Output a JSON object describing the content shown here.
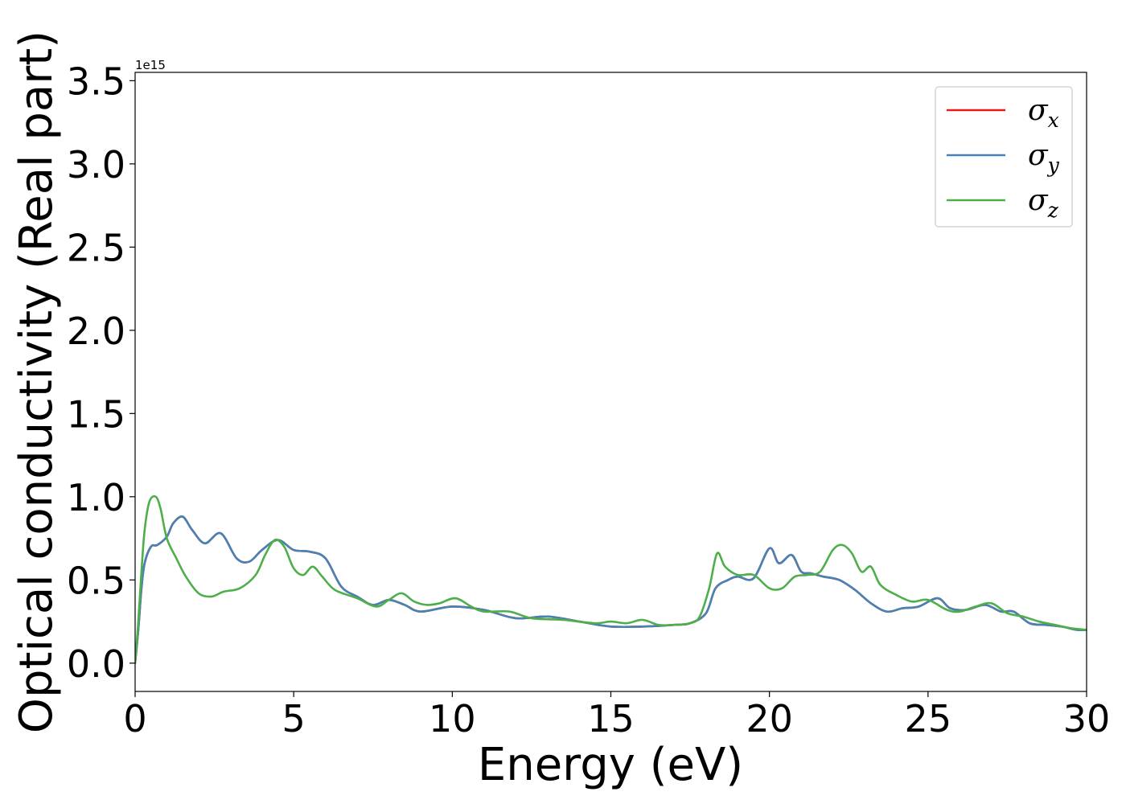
{
  "chart_data": {
    "type": "line",
    "title": "",
    "xlabel": "Energy (eV)",
    "ylabel": "Optical conductivity (Real part)",
    "y_offset_label": "1e15",
    "xlim": [
      0,
      30
    ],
    "ylim": [
      -0.17,
      3.55
    ],
    "xticks": [
      0,
      5,
      10,
      15,
      20,
      25,
      30
    ],
    "xtick_labels": [
      "0",
      "5",
      "10",
      "15",
      "20",
      "25",
      "30"
    ],
    "yticks": [
      0.0,
      0.5,
      1.0,
      1.5,
      2.0,
      2.5,
      3.0,
      3.5
    ],
    "ytick_labels": [
      "0.0",
      "0.5",
      "1.0",
      "1.5",
      "2.0",
      "2.5",
      "3.0",
      "3.5"
    ],
    "grid": false,
    "legend_position": "top-right",
    "series": [
      {
        "name": "σx",
        "symbol": "σ",
        "subscript": "x",
        "color": "#e41a1c",
        "x": [
          0,
          0.1,
          0.2,
          0.3,
          0.5,
          0.7,
          1.0,
          1.2,
          1.5,
          1.8,
          2.2,
          2.7,
          3.2,
          3.6,
          4.0,
          4.5,
          5.0,
          5.5,
          6.0,
          6.5,
          7.0,
          7.5,
          8.0,
          8.5,
          9.0,
          10.0,
          11.0,
          12.0,
          13.0,
          14.0,
          15.0,
          16.0,
          17.0,
          17.5,
          18.0,
          18.3,
          18.7,
          19.0,
          19.5,
          20.0,
          20.3,
          20.7,
          21.0,
          21.3,
          21.7,
          22.2,
          22.7,
          23.2,
          23.7,
          24.2,
          24.7,
          25.3,
          25.7,
          26.2,
          26.8,
          27.3,
          27.7,
          28.2,
          28.7,
          29.2,
          29.7,
          30.0
        ],
        "y": [
          0,
          0.2,
          0.45,
          0.6,
          0.7,
          0.71,
          0.76,
          0.84,
          0.88,
          0.8,
          0.72,
          0.78,
          0.63,
          0.61,
          0.68,
          0.74,
          0.68,
          0.67,
          0.63,
          0.46,
          0.4,
          0.35,
          0.38,
          0.35,
          0.31,
          0.34,
          0.32,
          0.27,
          0.28,
          0.25,
          0.22,
          0.22,
          0.23,
          0.24,
          0.3,
          0.45,
          0.5,
          0.52,
          0.51,
          0.69,
          0.6,
          0.65,
          0.55,
          0.54,
          0.52,
          0.5,
          0.44,
          0.36,
          0.31,
          0.33,
          0.34,
          0.39,
          0.33,
          0.32,
          0.35,
          0.31,
          0.31,
          0.24,
          0.23,
          0.22,
          0.2,
          0.2
        ]
      },
      {
        "name": "σy",
        "symbol": "σ",
        "subscript": "y",
        "color": "#4682b4",
        "x": [
          0,
          0.1,
          0.2,
          0.3,
          0.5,
          0.7,
          1.0,
          1.2,
          1.5,
          1.8,
          2.2,
          2.7,
          3.2,
          3.6,
          4.0,
          4.5,
          5.0,
          5.5,
          6.0,
          6.5,
          7.0,
          7.5,
          8.0,
          8.5,
          9.0,
          10.0,
          11.0,
          12.0,
          13.0,
          14.0,
          15.0,
          16.0,
          17.0,
          17.5,
          18.0,
          18.3,
          18.7,
          19.0,
          19.5,
          20.0,
          20.3,
          20.7,
          21.0,
          21.3,
          21.7,
          22.2,
          22.7,
          23.2,
          23.7,
          24.2,
          24.7,
          25.3,
          25.7,
          26.2,
          26.8,
          27.3,
          27.7,
          28.2,
          28.7,
          29.2,
          29.7,
          30.0
        ],
        "y": [
          0,
          0.2,
          0.45,
          0.6,
          0.7,
          0.71,
          0.76,
          0.84,
          0.88,
          0.8,
          0.72,
          0.78,
          0.63,
          0.61,
          0.68,
          0.74,
          0.68,
          0.67,
          0.63,
          0.46,
          0.4,
          0.35,
          0.38,
          0.35,
          0.31,
          0.34,
          0.32,
          0.27,
          0.28,
          0.25,
          0.22,
          0.22,
          0.23,
          0.24,
          0.3,
          0.45,
          0.5,
          0.52,
          0.51,
          0.69,
          0.6,
          0.65,
          0.55,
          0.54,
          0.52,
          0.5,
          0.44,
          0.36,
          0.31,
          0.33,
          0.34,
          0.39,
          0.33,
          0.32,
          0.35,
          0.31,
          0.31,
          0.24,
          0.23,
          0.22,
          0.2,
          0.2
        ]
      },
      {
        "name": "σz",
        "symbol": "σ",
        "subscript": "z",
        "color": "#4daf4a",
        "x": [
          0,
          0.1,
          0.2,
          0.3,
          0.45,
          0.65,
          0.8,
          1.0,
          1.3,
          1.6,
          2.0,
          2.4,
          2.8,
          3.3,
          3.8,
          4.1,
          4.4,
          4.7,
          5.0,
          5.3,
          5.6,
          5.9,
          6.3,
          7.0,
          7.6,
          8.0,
          8.4,
          8.8,
          9.2,
          9.6,
          10.1,
          10.6,
          11.0,
          11.8,
          12.5,
          13.5,
          14.5,
          15.0,
          15.5,
          16.0,
          16.5,
          17.0,
          17.5,
          17.8,
          18.1,
          18.35,
          18.6,
          19.0,
          19.5,
          20.0,
          20.4,
          20.8,
          21.2,
          21.6,
          22.0,
          22.3,
          22.6,
          22.9,
          23.2,
          23.5,
          24.0,
          24.5,
          25.0,
          25.6,
          26.0,
          26.5,
          27.0,
          27.5,
          28.0,
          28.5,
          29.0,
          29.5,
          30.0
        ],
        "y": [
          0,
          0.25,
          0.55,
          0.8,
          0.97,
          1.0,
          0.93,
          0.75,
          0.63,
          0.52,
          0.42,
          0.4,
          0.43,
          0.45,
          0.53,
          0.65,
          0.74,
          0.7,
          0.57,
          0.53,
          0.58,
          0.52,
          0.44,
          0.39,
          0.34,
          0.38,
          0.42,
          0.37,
          0.35,
          0.36,
          0.39,
          0.34,
          0.31,
          0.31,
          0.27,
          0.26,
          0.24,
          0.25,
          0.24,
          0.26,
          0.23,
          0.23,
          0.24,
          0.28,
          0.45,
          0.66,
          0.58,
          0.53,
          0.53,
          0.45,
          0.45,
          0.52,
          0.53,
          0.55,
          0.68,
          0.71,
          0.66,
          0.55,
          0.58,
          0.47,
          0.41,
          0.37,
          0.38,
          0.32,
          0.31,
          0.34,
          0.36,
          0.3,
          0.28,
          0.25,
          0.23,
          0.21,
          0.2
        ]
      }
    ]
  }
}
